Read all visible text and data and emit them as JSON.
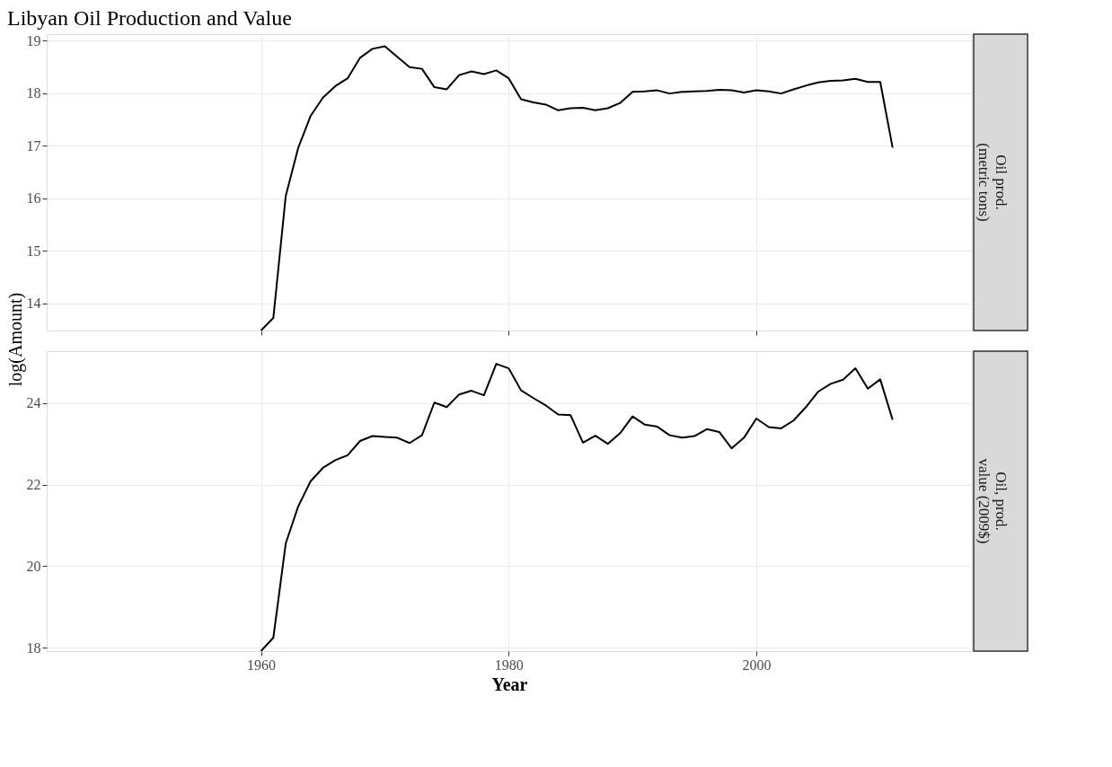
{
  "chart_data": [
    {
      "type": "line",
      "title": "Libyan Oil Production and Value",
      "subtitle": "Oil prod.\n(metric tons)",
      "ylabel": "log(Amount)",
      "x": [
        1960,
        1961,
        1962,
        1963,
        1964,
        1965,
        1966,
        1967,
        1968,
        1969,
        1970,
        1971,
        1972,
        1973,
        1974,
        1975,
        1976,
        1977,
        1978,
        1979,
        1980,
        1981,
        1982,
        1983,
        1984,
        1985,
        1986,
        1987,
        1988,
        1989,
        1990,
        1991,
        1992,
        1993,
        1994,
        1995,
        1996,
        1997,
        1998,
        1999,
        2000,
        2001,
        2002,
        2003,
        2004,
        2005,
        2006,
        2007,
        2008,
        2009,
        2010,
        2011
      ],
      "series": [
        {
          "color": "#000000",
          "values": [
            13.48,
            13.72,
            16.04,
            16.95,
            17.56,
            17.91,
            18.13,
            18.28,
            18.67,
            18.84,
            18.89,
            18.69,
            18.49,
            18.46,
            18.11,
            18.07,
            18.34,
            18.41,
            18.36,
            18.43,
            18.28,
            17.88,
            17.82,
            17.78,
            17.67,
            17.71,
            17.72,
            17.67,
            17.71,
            17.81,
            18.02,
            18.03,
            18.05,
            17.99,
            18.02,
            18.03,
            18.04,
            18.06,
            18.05,
            18.01,
            18.05,
            18.03,
            17.99,
            18.07,
            18.14,
            18.2,
            18.23,
            18.24,
            18.27,
            18.21,
            18.21,
            16.96
          ]
        }
      ],
      "xlim": [
        1942.7,
        2017.4
      ],
      "xticks": [
        1960,
        1980,
        2000
      ],
      "ylim": [
        13.48,
        19.12
      ],
      "yticks": [
        14,
        15,
        16,
        17,
        18,
        19
      ],
      "grid": true,
      "tick_labels": "y",
      "line_style": "solid",
      "marker": "none"
    },
    {
      "type": "line",
      "subtitle": "Oil, prod.\nvalue (2009$)",
      "xlabel": "Year",
      "x": [
        1960,
        1961,
        1962,
        1963,
        1964,
        1965,
        1966,
        1967,
        1968,
        1969,
        1970,
        1971,
        1972,
        1973,
        1974,
        1975,
        1976,
        1977,
        1978,
        1979,
        1980,
        1981,
        1982,
        1983,
        1984,
        1985,
        1986,
        1987,
        1988,
        1989,
        1990,
        1991,
        1992,
        1993,
        1994,
        1995,
        1996,
        1997,
        1998,
        1999,
        2000,
        2001,
        2002,
        2003,
        2004,
        2005,
        2006,
        2007,
        2008,
        2009,
        2010,
        2011
      ],
      "series": [
        {
          "color": "#000000",
          "values": [
            17.92,
            18.25,
            20.56,
            21.46,
            22.08,
            22.41,
            22.6,
            22.72,
            23.07,
            23.19,
            23.17,
            23.15,
            23.02,
            23.21,
            24.01,
            23.9,
            24.21,
            24.3,
            24.19,
            24.96,
            24.85,
            24.31,
            24.12,
            23.94,
            23.72,
            23.7,
            23.03,
            23.2,
            23.0,
            23.26,
            23.67,
            23.47,
            23.42,
            23.21,
            23.15,
            23.19,
            23.36,
            23.29,
            22.89,
            23.15,
            23.62,
            23.41,
            23.38,
            23.57,
            23.9,
            24.28,
            24.47,
            24.57,
            24.85,
            24.35,
            24.58,
            23.59
          ]
        }
      ],
      "xlim": [
        1942.7,
        2017.4
      ],
      "xticks": [
        1960,
        1980,
        2000
      ],
      "ylim": [
        17.92,
        25.27
      ],
      "yticks": [
        18,
        20,
        22,
        24
      ],
      "grid": true,
      "line_style": "solid",
      "marker": "none"
    }
  ]
}
